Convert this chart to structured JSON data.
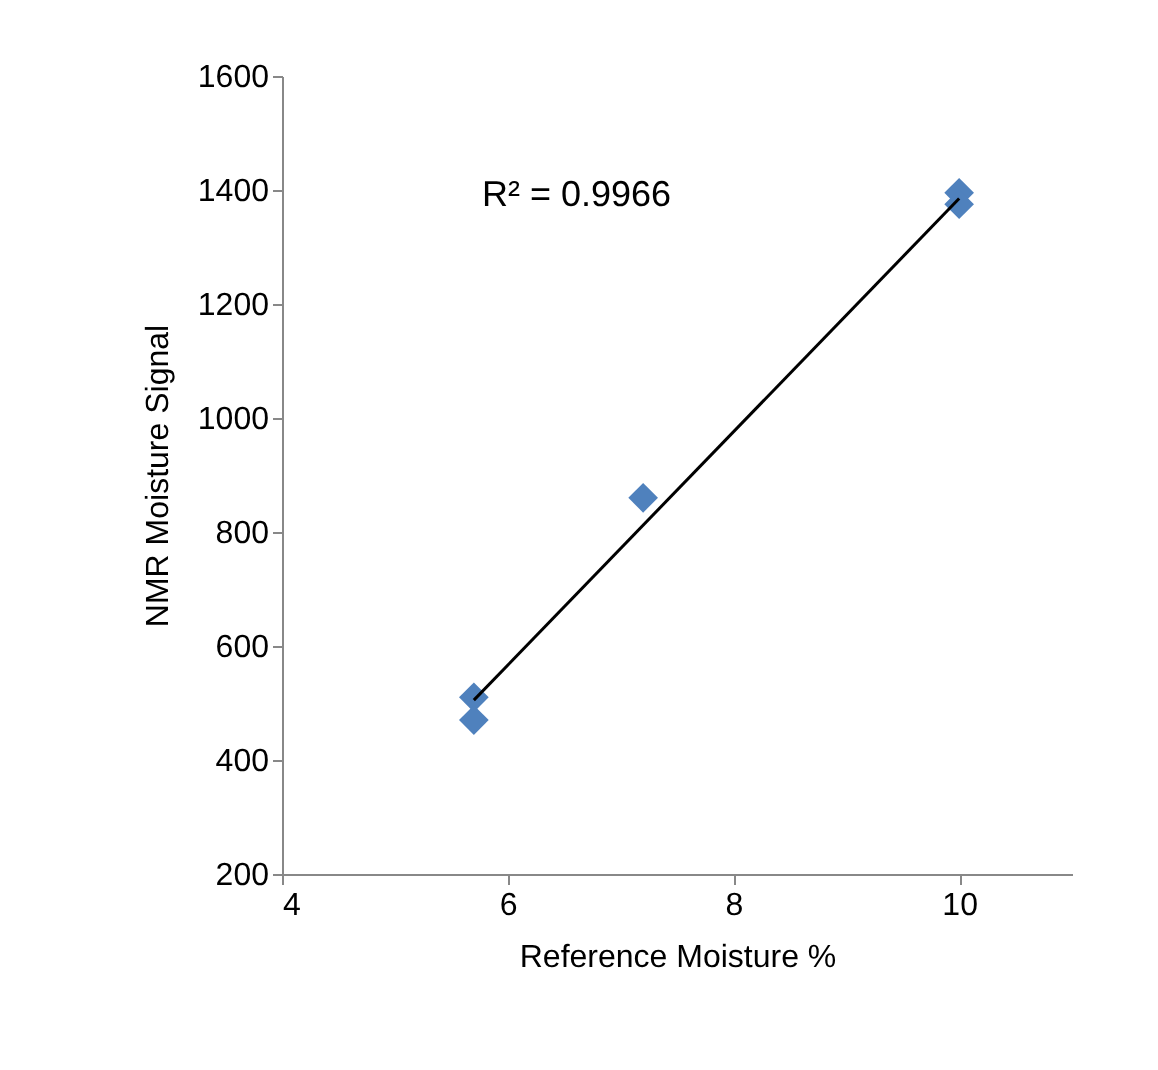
{
  "chart_data": {
    "type": "scatter",
    "xlabel": "Reference Moisture %",
    "ylabel": "NMR Moisture Signal",
    "annotations": [
      "R² = 0.9966"
    ],
    "xlim": [
      4,
      11
    ],
    "xticks": [
      4,
      6,
      8,
      10
    ],
    "ylim": [
      200,
      1600
    ],
    "yticks": [
      200,
      400,
      600,
      800,
      1000,
      1200,
      1400,
      1600
    ],
    "grid": false,
    "marker": "diamond",
    "series": [
      {
        "color": "#4f81bd",
        "x": [
          5.7,
          5.7,
          7.2,
          10,
          10
        ],
        "values": [
          510,
          470,
          860,
          1395,
          1375
        ]
      },
      {
        "type": "line",
        "color": "#000000",
        "marker": "none",
        "x": [
          5.7,
          10
        ],
        "values": [
          505,
          1385
        ]
      }
    ]
  }
}
